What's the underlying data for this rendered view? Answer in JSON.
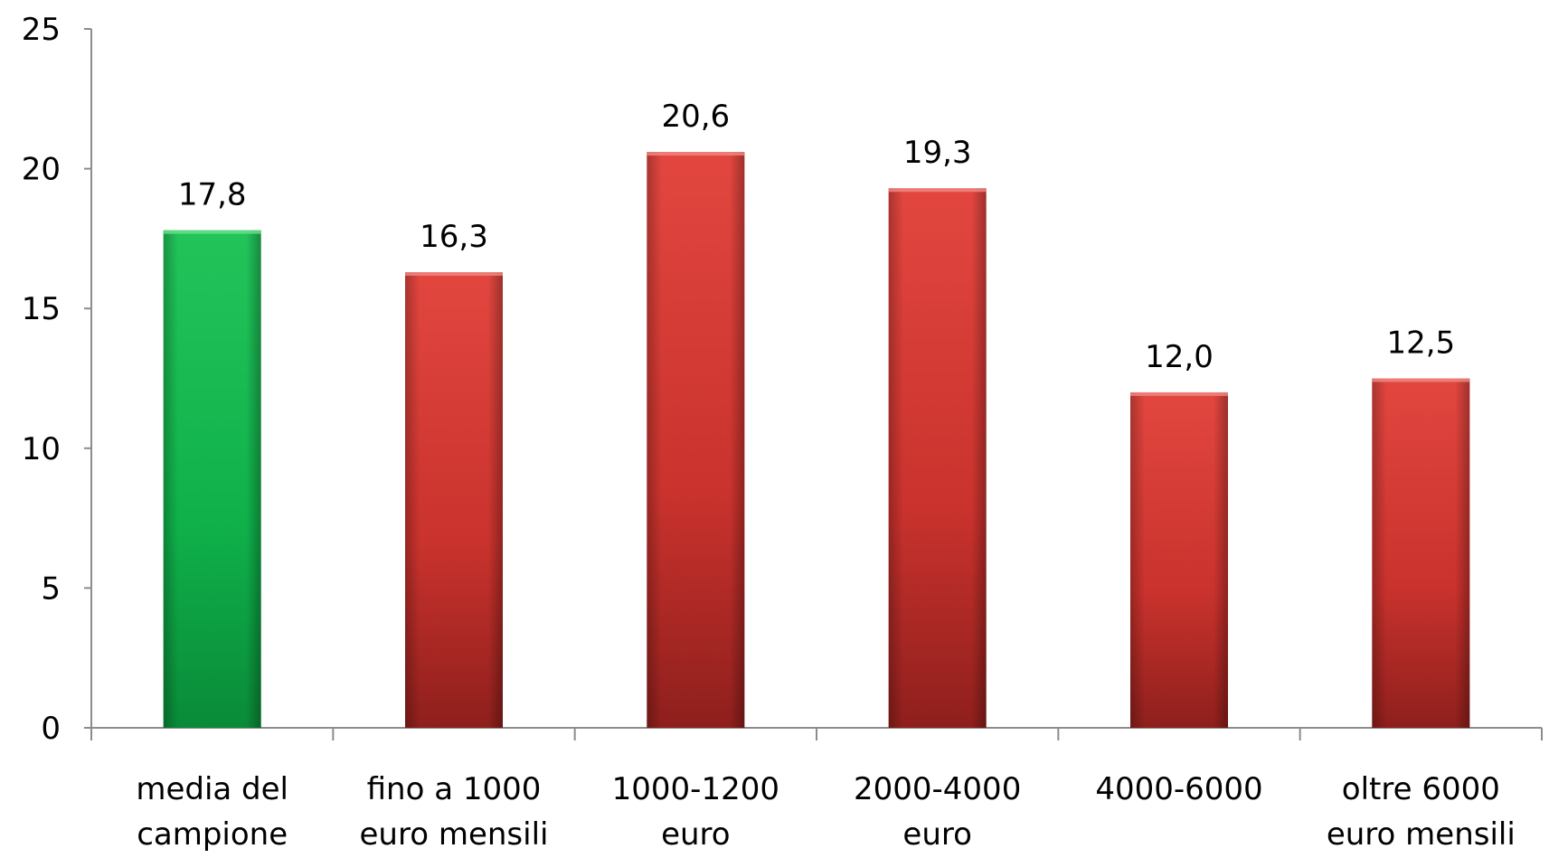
{
  "chart_data": {
    "type": "bar",
    "title": "",
    "xlabel": "",
    "ylabel": "",
    "ylim": [
      0,
      25
    ],
    "yticks": [
      0,
      5,
      10,
      15,
      20,
      25
    ],
    "grid": false,
    "categories": [
      [
        "media del",
        "campione"
      ],
      [
        "fino a 1000",
        "euro mensili"
      ],
      [
        "1000-1200",
        "euro"
      ],
      [
        "2000-4000",
        "euro"
      ],
      [
        "4000-6000"
      ],
      [
        "oltre 6000",
        "euro mensili"
      ]
    ],
    "values": [
      17.8,
      16.3,
      20.6,
      19.3,
      12.0,
      12.5
    ],
    "data_labels": [
      "17,8",
      "16,3",
      "20,6",
      "19,3",
      "12,0",
      "12,5"
    ],
    "bar_colors": [
      "#10b24a",
      "#c6302c",
      "#c6302c",
      "#c6302c",
      "#c6302c",
      "#c6302c"
    ]
  }
}
